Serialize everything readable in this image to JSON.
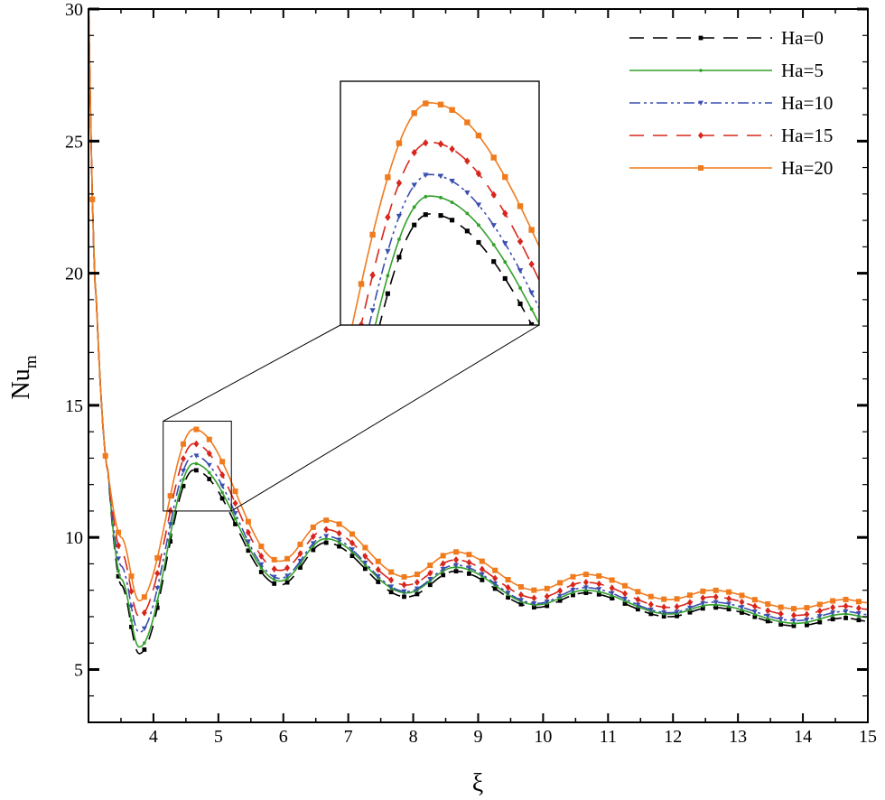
{
  "chart_data": {
    "type": "line",
    "xlabel": "ξ",
    "ylabel": {
      "main": "Nu",
      "sub": "m"
    },
    "xlim": [
      3,
      15
    ],
    "ylim": [
      3,
      30
    ],
    "x_ticks": [
      4,
      5,
      6,
      7,
      8,
      9,
      10,
      11,
      12,
      13,
      14,
      15
    ],
    "y_ticks": [
      5,
      10,
      15,
      20,
      25,
      30
    ],
    "legend_position": "top-right",
    "grid": false,
    "inset": {
      "type": "zoom",
      "xlim": [
        4.15,
        5.2
      ],
      "ylim": [
        11.0,
        14.4
      ]
    },
    "series": [
      {
        "name": "Ha=0",
        "color": "#000000",
        "dash": "16,10",
        "marker": "square-small",
        "offset": 0.0,
        "peaks": [
          12.55,
          9.8,
          8.72,
          7.9,
          7.35,
          6.95
        ],
        "troughs": [
          5.6,
          8.2,
          7.75,
          7.35,
          7.0,
          6.65
        ]
      },
      {
        "name": "Ha=5",
        "color": "#33a02c",
        "dash": "",
        "marker": "dot",
        "offset": 0.05,
        "peaks": [
          12.75,
          9.9,
          8.82,
          7.95,
          7.4,
          7.05
        ],
        "troughs": [
          5.8,
          8.3,
          7.85,
          7.4,
          7.05,
          6.7
        ]
      },
      {
        "name": "Ha=10",
        "color": "#3a4fb0",
        "dash": "12,4,3,4,3,4",
        "marker": "triangle-down",
        "offset": 0.0,
        "peaks": [
          13.1,
          10.05,
          8.95,
          8.1,
          7.55,
          7.2
        ],
        "troughs": [
          6.4,
          8.45,
          7.95,
          7.5,
          7.15,
          6.85
        ]
      },
      {
        "name": "Ha=15",
        "color": "#d9261c",
        "dash": "16,10",
        "marker": "diamond",
        "offset": 0.0,
        "peaks": [
          13.55,
          10.3,
          9.15,
          8.3,
          7.75,
          7.4
        ],
        "troughs": [
          7.0,
          8.75,
          8.2,
          7.7,
          7.35,
          7.05
        ]
      },
      {
        "name": "Ha=20",
        "color": "#f07b1d",
        "dash": "",
        "marker": "square",
        "offset": 0.0,
        "peaks": [
          14.1,
          10.65,
          9.45,
          8.6,
          8.0,
          7.65
        ],
        "troughs": [
          7.6,
          9.1,
          8.5,
          8.0,
          7.65,
          7.3
        ]
      }
    ],
    "peak_x": [
      4.62,
      6.65,
      8.65,
      10.65,
      12.6,
      14.65
    ],
    "trough_x": [
      3.78,
      5.95,
      7.9,
      9.9,
      11.95,
      13.9
    ]
  }
}
